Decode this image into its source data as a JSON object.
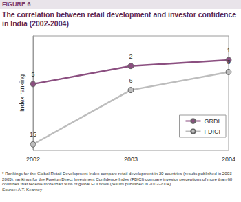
{
  "chart_data": {
    "type": "line",
    "figure_label": "FIGURE 6",
    "title": "The correlation between retail development and investor confidence in India (2002-2004)",
    "y_label": "Index ranking",
    "categories": [
      "2002",
      "2003",
      "2004"
    ],
    "series": [
      {
        "name": "GRDI",
        "color": "#8b4f80",
        "values": [
          5,
          2,
          1
        ]
      },
      {
        "name": "FDICI",
        "color": "#bdbdbd",
        "values": [
          15,
          6,
          3
        ]
      }
    ],
    "ylim": [
      16,
      -3
    ],
    "grid": false,
    "legend": "lower right",
    "data_labels": true,
    "tick_labels": "x",
    "marker": "circle",
    "line_style": "solid",
    "footnote": "* Rankings for the Global Retail Development Index compare retail development in 30 countries (results published in 2003-2005); rankings for the Foreign Direct Investment Confidence Index (FDICI) compare investor perceptions of more than 60 countries that receive more than 90% of global FDI flows (results published in 2002-2004)",
    "source": "Source: A.T. Kearney"
  }
}
